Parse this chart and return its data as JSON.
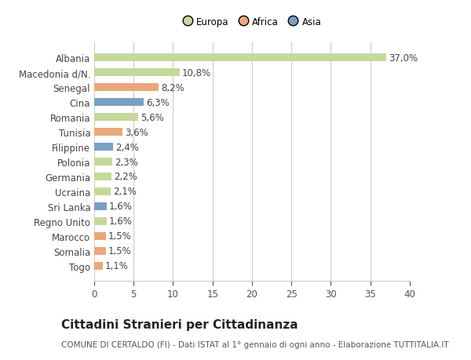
{
  "categories": [
    "Togo",
    "Somalia",
    "Marocco",
    "Regno Unito",
    "Sri Lanka",
    "Ucraina",
    "Germania",
    "Polonia",
    "Filippine",
    "Tunisia",
    "Romania",
    "Cina",
    "Senegal",
    "Macedonia d/N.",
    "Albania"
  ],
  "values": [
    1.1,
    1.5,
    1.5,
    1.6,
    1.6,
    2.1,
    2.2,
    2.3,
    2.4,
    3.6,
    5.6,
    6.3,
    8.2,
    10.8,
    37.0
  ],
  "labels": [
    "1,1%",
    "1,5%",
    "1,5%",
    "1,6%",
    "1,6%",
    "2,1%",
    "2,2%",
    "2,3%",
    "2,4%",
    "3,6%",
    "5,6%",
    "6,3%",
    "8,2%",
    "10,8%",
    "37,0%"
  ],
  "colors": [
    "#e8a87c",
    "#e8a87c",
    "#e8a87c",
    "#c5d99a",
    "#7a9fc4",
    "#c5d99a",
    "#c5d99a",
    "#c5d99a",
    "#7a9fc4",
    "#e8a87c",
    "#c5d99a",
    "#7a9fc4",
    "#e8a87c",
    "#c5d99a",
    "#c5d99a"
  ],
  "legend_labels": [
    "Europa",
    "Africa",
    "Asia"
  ],
  "legend_colors": [
    "#c5d99a",
    "#e8a87c",
    "#7a9fc4"
  ],
  "title": "Cittadini Stranieri per Cittadinanza",
  "subtitle": "COMUNE DI CERTALDO (FI) - Dati ISTAT al 1° gennaio di ogni anno - Elaborazione TUTTITALIA.IT",
  "xlim": [
    0,
    40
  ],
  "xticks": [
    0,
    5,
    10,
    15,
    20,
    25,
    30,
    35,
    40
  ],
  "bg_color": "#ffffff",
  "plot_bg_color": "#ffffff",
  "grid_color": "#cccccc",
  "bar_height": 0.55,
  "label_fontsize": 8.5,
  "title_fontsize": 11,
  "subtitle_fontsize": 7.5,
  "tick_fontsize": 8.5
}
